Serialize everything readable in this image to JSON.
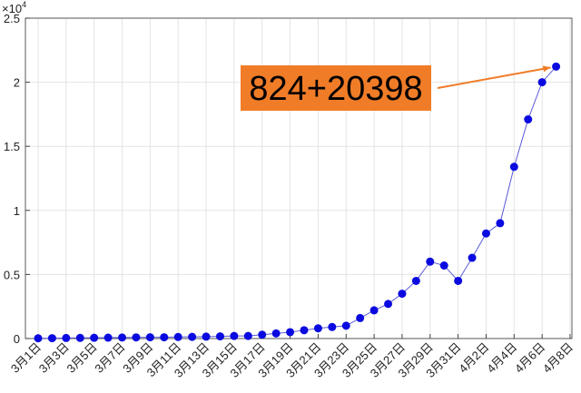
{
  "chart_data": {
    "type": "line",
    "y_multiplier": {
      "base": "×10",
      "exponent": "4"
    },
    "annotation": "824+20398",
    "categories": [
      "3月1日",
      null,
      "3月3日",
      null,
      "3月5日",
      null,
      "3月7日",
      null,
      "3月9日",
      null,
      "3月11日",
      null,
      "3月13日",
      null,
      "3月15日",
      null,
      "3月17日",
      null,
      "3月19日",
      null,
      "3月21日",
      null,
      "3月23日",
      null,
      "3月25日",
      null,
      "3月27日",
      null,
      "3月29日",
      null,
      "3月31日",
      null,
      "4月2日",
      null,
      "4月4日",
      null,
      "4月6日",
      null,
      "4月8日"
    ],
    "values": [
      0.002,
      0.003,
      0.004,
      0.005,
      0.006,
      0.007,
      0.008,
      0.009,
      0.01,
      0.01,
      0.012,
      0.013,
      0.015,
      0.017,
      0.02,
      0.02,
      0.03,
      0.04,
      0.05,
      0.065,
      0.08,
      0.09,
      0.1,
      0.16,
      0.22,
      0.27,
      0.35,
      0.45,
      0.6,
      0.57,
      0.45,
      0.63,
      0.82,
      0.9,
      1.34,
      1.71,
      2.0,
      2.1222,
      null
    ],
    "color": "#0a0ae0",
    "ylim": [
      0,
      2.5
    ],
    "yticks": [
      0,
      0.5,
      1,
      1.5,
      2,
      2.5
    ],
    "grid": true
  }
}
